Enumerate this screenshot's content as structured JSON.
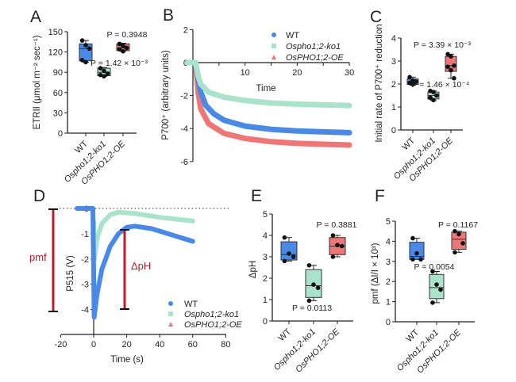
{
  "colors": {
    "WT": "#4a8ae6",
    "ko": "#a9e3cb",
    "OE": "#ef7676",
    "annotation": "#c0192b"
  },
  "chart_data": [
    {
      "panel": "A",
      "type": "box",
      "ylabel": "ETRII (μmol m⁻² sec⁻¹)",
      "categories": [
        "WT",
        "Ospho1;2-ko1",
        "OsPHO1;2-OE"
      ],
      "ylim": [
        0,
        150
      ],
      "yticks": [
        0,
        30,
        60,
        90,
        120,
        150
      ],
      "boxes": [
        {
          "min": 105,
          "q1": 107,
          "median": 125,
          "q3": 132,
          "max": 137,
          "points": [
            137,
            130,
            125,
            108,
            105
          ]
        },
        {
          "min": 84,
          "q1": 85,
          "median": 90,
          "q3": 96,
          "max": 97,
          "points": [
            96,
            92,
            88,
            86,
            84
          ]
        },
        {
          "min": 121,
          "q1": 122,
          "median": 126,
          "q3": 132,
          "max": 133,
          "points": [
            132,
            129,
            126,
            124,
            121
          ]
        }
      ],
      "annotations": [
        "P = 0.3948",
        "P = 1.42 × 10⁻³"
      ]
    },
    {
      "panel": "B",
      "type": "line",
      "ylabel": "P700⁺ (arbitrary units)",
      "xlabel": "Time",
      "xlim": [
        0,
        30
      ],
      "xticks": [
        10,
        20,
        30
      ],
      "ylim": [
        -6,
        2
      ],
      "yticks": [
        2,
        0,
        -2,
        -4,
        -6
      ],
      "legend": {
        "position": "top-right"
      },
      "series": [
        {
          "name": "WT",
          "marker": "circle",
          "points": [
            [
              -1,
              0
            ],
            [
              0.5,
              0
            ],
            [
              1,
              -1
            ],
            [
              1.5,
              -1.8
            ],
            [
              2.5,
              -2.6
            ],
            [
              4,
              -3.1
            ],
            [
              6,
              -3.5
            ],
            [
              10,
              -3.85
            ],
            [
              15,
              -4.05
            ],
            [
              20,
              -4.15
            ],
            [
              25,
              -4.2
            ],
            [
              30,
              -4.25
            ]
          ]
        },
        {
          "name": "Ospho1;2-ko1",
          "marker": "square",
          "points": [
            [
              -1,
              0
            ],
            [
              0.5,
              0
            ],
            [
              1,
              -0.8
            ],
            [
              1.5,
              -1.3
            ],
            [
              3,
              -1.8
            ],
            [
              6,
              -2.1
            ],
            [
              10,
              -2.3
            ],
            [
              15,
              -2.45
            ],
            [
              20,
              -2.52
            ],
            [
              30,
              -2.6
            ]
          ]
        },
        {
          "name": "OsPHO1;2-OE",
          "marker": "triangle",
          "points": [
            [
              -1,
              0
            ],
            [
              0.5,
              0
            ],
            [
              1,
              -1.8
            ],
            [
              1.5,
              -2.8
            ],
            [
              3,
              -3.7
            ],
            [
              6,
              -4.3
            ],
            [
              10,
              -4.6
            ],
            [
              15,
              -4.8
            ],
            [
              20,
              -4.9
            ],
            [
              30,
              -5.0
            ]
          ]
        }
      ]
    },
    {
      "panel": "C",
      "type": "box",
      "ylabel": "Initial rate of P700⁺ reduction",
      "categories": [
        "WT",
        "Ospho1;2-ko1",
        "OsPHO1;2-OE"
      ],
      "ylim": [
        0,
        4
      ],
      "yticks": [
        0,
        1,
        2,
        3,
        4
      ],
      "boxes": [
        {
          "min": 1.95,
          "q1": 1.98,
          "median": 2.1,
          "q3": 2.22,
          "max": 2.3,
          "points": [
            2.3,
            2.15,
            2.1,
            2.05,
            1.98
          ]
        },
        {
          "min": 1.28,
          "q1": 1.35,
          "median": 1.5,
          "q3": 1.65,
          "max": 1.7,
          "points": [
            1.7,
            1.65,
            1.5,
            1.4,
            1.3
          ]
        },
        {
          "min": 2.25,
          "q1": 2.55,
          "median": 2.8,
          "q3": 3.2,
          "max": 3.3,
          "points": [
            3.3,
            3.2,
            2.8,
            2.75,
            2.6,
            2.25
          ]
        }
      ],
      "annotations": [
        "P = 3.39 × 10⁻³",
        "P = 1.46 × 10⁻⁴"
      ]
    },
    {
      "panel": "D",
      "type": "line",
      "ylabel": "P515 (V)",
      "xlabel": "Time (s)",
      "xlim": [
        -20,
        80
      ],
      "xticks": [
        -20,
        0,
        20,
        40,
        60,
        80
      ],
      "ylim": [
        -4,
        0
      ],
      "yticks": [
        0,
        -1,
        -2,
        -3,
        -4
      ],
      "legend": {
        "position": "bottom-right"
      },
      "annotations": [
        "pmf",
        "ΔpH"
      ],
      "series": [
        {
          "name": "WT",
          "marker": "circle",
          "points": [
            [
              -10,
              0
            ],
            [
              -0.5,
              0
            ],
            [
              0,
              -2.5
            ],
            [
              0.3,
              -4.3
            ],
            [
              2,
              -3.4
            ],
            [
              5,
              -2.4
            ],
            [
              10,
              -1.5
            ],
            [
              15,
              -1.0
            ],
            [
              20,
              -0.75
            ],
            [
              25,
              -0.7
            ],
            [
              35,
              -0.8
            ],
            [
              45,
              -1.0
            ],
            [
              60,
              -1.3
            ]
          ]
        },
        {
          "name": "Ospho1;2-ko1",
          "marker": "square",
          "points": [
            [
              0,
              -0.5
            ],
            [
              0.5,
              -2
            ],
            [
              2,
              -1.2
            ],
            [
              5,
              -0.6
            ],
            [
              10,
              -0.25
            ],
            [
              15,
              -0.15
            ],
            [
              25,
              -0.2
            ],
            [
              40,
              -0.35
            ],
            [
              60,
              -0.5
            ]
          ]
        },
        {
          "name": "OsPHO1;2-OE",
          "marker": "triangle",
          "points": []
        }
      ]
    },
    {
      "panel": "E",
      "type": "box",
      "ylabel": "ΔpH",
      "categories": [
        "WT",
        "Ospho1;2-ko1",
        "OsPHO1;2-OE"
      ],
      "ylim": [
        0,
        5
      ],
      "yticks": [
        0,
        1,
        2,
        3,
        4,
        5
      ],
      "boxes": [
        {
          "min": 2.8,
          "q1": 2.85,
          "median": 3.1,
          "q3": 3.7,
          "max": 3.9,
          "points": [
            3.9,
            3.15,
            3.0,
            2.8
          ]
        },
        {
          "min": 0.95,
          "q1": 1.1,
          "median": 1.65,
          "q3": 2.4,
          "max": 2.6,
          "points": [
            2.6,
            1.7,
            1.55,
            0.95
          ]
        },
        {
          "min": 3.0,
          "q1": 3.1,
          "median": 3.5,
          "q3": 3.9,
          "max": 4.0,
          "points": [
            4.0,
            3.55,
            3.5,
            3.0
          ]
        }
      ],
      "annotations": [
        "P = 0.3881",
        "P = 0.0113"
      ]
    },
    {
      "panel": "F",
      "type": "box",
      "ylabel": "pmf (ΔI/I × 10³)",
      "categories": [
        "WT",
        "Ospho1;2-ko1",
        "OsPHO1;2-OE"
      ],
      "ylim": [
        0,
        5
      ],
      "yticks": [
        0,
        1,
        2,
        3,
        4,
        5
      ],
      "boxes": [
        {
          "min": 3.1,
          "q1": 3.1,
          "median": 3.25,
          "q3": 3.95,
          "max": 4.15,
          "points": [
            4.15,
            3.4,
            3.1,
            3.1
          ]
        },
        {
          "min": 0.95,
          "q1": 1.15,
          "median": 1.7,
          "q3": 2.35,
          "max": 2.5,
          "points": [
            2.5,
            1.85,
            1.6,
            0.95
          ]
        },
        {
          "min": 3.45,
          "q1": 3.6,
          "median": 4.1,
          "q3": 4.45,
          "max": 4.5,
          "points": [
            4.5,
            4.35,
            3.9,
            3.45
          ]
        }
      ],
      "annotations": [
        "P = 0.1167",
        "P = 0.0054"
      ]
    }
  ]
}
